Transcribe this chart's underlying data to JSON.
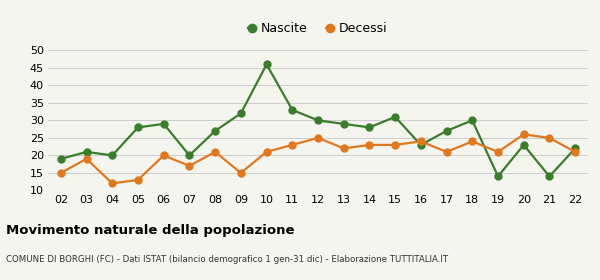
{
  "years": [
    "02",
    "03",
    "04",
    "05",
    "06",
    "07",
    "08",
    "09",
    "10",
    "11",
    "12",
    "13",
    "14",
    "15",
    "16",
    "17",
    "18",
    "19",
    "20",
    "21",
    "22"
  ],
  "nascite": [
    19,
    21,
    20,
    28,
    29,
    20,
    27,
    32,
    46,
    33,
    30,
    29,
    28,
    31,
    23,
    27,
    30,
    14,
    23,
    14,
    22
  ],
  "decessi": [
    15,
    19,
    12,
    13,
    20,
    17,
    21,
    15,
    21,
    23,
    25,
    22,
    23,
    23,
    24,
    21,
    24,
    21,
    26,
    25,
    21
  ],
  "nascite_color": "#3a7d2c",
  "decessi_color": "#e07820",
  "background_color": "#f5f5f0",
  "grid_color": "#cccccc",
  "ylim": [
    10,
    50
  ],
  "yticks": [
    10,
    15,
    20,
    25,
    30,
    35,
    40,
    45,
    50
  ],
  "title": "Movimento naturale della popolazione",
  "subtitle": "COMUNE DI BORGHI (FC) - Dati ISTAT (bilancio demografico 1 gen-31 dic) - Elaborazione TUTTITALIA.IT",
  "legend_nascite": "Nascite",
  "legend_decessi": "Decessi",
  "marker_size": 5,
  "line_width": 1.6
}
